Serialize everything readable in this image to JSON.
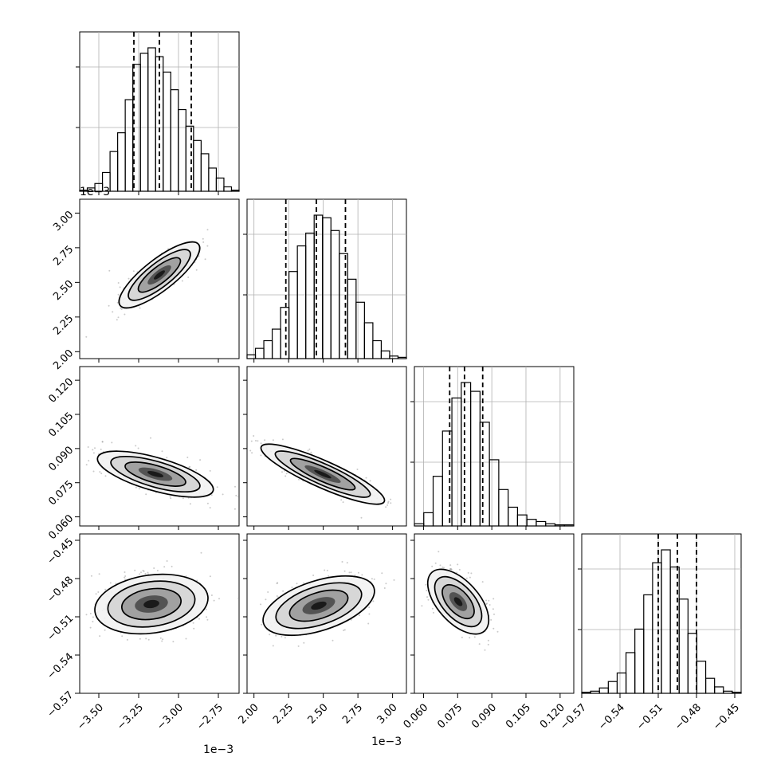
{
  "chart_data": {
    "type": "corner",
    "title": "",
    "colors": {
      "hist": "#000000",
      "grid": "#b0b0b0",
      "scatter": "#8a8a8a",
      "density": "#000000"
    },
    "params": [
      {
        "range": [
          -3.62,
          -2.62
        ],
        "ticks": [
          -3.5,
          -3.25,
          -3.0,
          -2.75
        ],
        "tick_labels": [
          "−3.50",
          "−3.25",
          "−3.00",
          "−2.75"
        ],
        "offset_label": "1e−3",
        "quantiles": [
          -3.28,
          -3.12,
          -2.92
        ]
      },
      {
        "range": [
          1.95,
          3.1
        ],
        "ticks": [
          2.0,
          2.25,
          2.5,
          2.75,
          3.0
        ],
        "tick_labels": [
          "2.00",
          "2.25",
          "2.50",
          "2.75",
          "3.00"
        ],
        "offset_label": "1e−3",
        "quantiles": [
          2.23,
          2.45,
          2.66
        ]
      },
      {
        "range": [
          0.056,
          0.126
        ],
        "ticks": [
          0.06,
          0.075,
          0.09,
          0.105,
          0.12
        ],
        "tick_labels": [
          "0.060",
          "0.075",
          "0.090",
          "0.105",
          "0.120"
        ],
        "quantiles": [
          0.0715,
          0.078,
          0.086
        ]
      },
      {
        "range": [
          -0.57,
          -0.445
        ],
        "ticks": [
          -0.57,
          -0.54,
          -0.51,
          -0.48,
          -0.45
        ],
        "tick_labels": [
          "−0.57",
          "−0.54",
          "−0.51",
          "−0.48",
          "−0.45"
        ],
        "quantiles": [
          -0.51,
          -0.495,
          -0.48
        ]
      }
    ],
    "y_offset_label": "1e−3",
    "histograms": [
      [
        1,
        3,
        7,
        17,
        36,
        53,
        83,
        115,
        125,
        130,
        122,
        108,
        92,
        74,
        59,
        46,
        34,
        21,
        12,
        4,
        1
      ],
      [
        3,
        8,
        14,
        23,
        40,
        68,
        88,
        98,
        112,
        110,
        100,
        82,
        62,
        44,
        28,
        14,
        6,
        2,
        1
      ],
      [
        2,
        12,
        45,
        86,
        116,
        130,
        122,
        94,
        60,
        33,
        17,
        10,
        6,
        4,
        2,
        1,
        1
      ],
      [
        1,
        2,
        5,
        11,
        19,
        38,
        60,
        92,
        122,
        134,
        118,
        88,
        56,
        30,
        14,
        6,
        2,
        1
      ]
    ]
  }
}
